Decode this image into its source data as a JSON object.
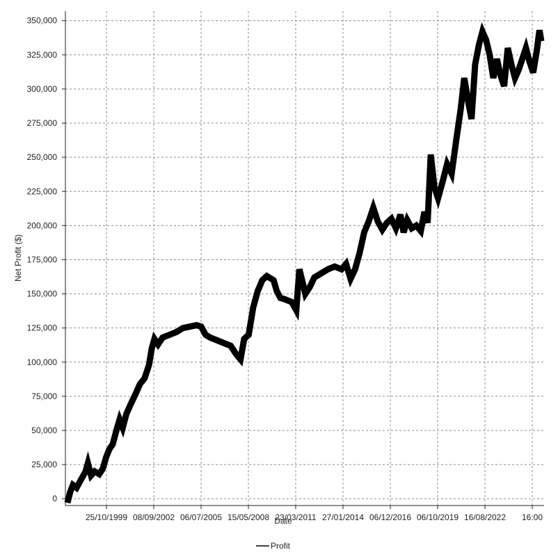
{
  "chart_data": {
    "type": "line",
    "xlabel": "Date",
    "ylabel": "Net Profit ($)",
    "ylim": [
      -5000,
      357000
    ],
    "y_ticks": [
      0,
      25000,
      50000,
      75000,
      100000,
      125000,
      150000,
      175000,
      200000,
      225000,
      250000,
      275000,
      300000,
      325000,
      350000
    ],
    "y_tick_labels": [
      "0",
      "25,000",
      "50,000",
      "75,000",
      "100,000",
      "125,000",
      "150,000",
      "175,000",
      "200,000",
      "225,000",
      "250,000",
      "275,000",
      "300,000",
      "325,000",
      "350,000"
    ],
    "x_ticks": [
      "25/10/1999",
      "08/09/2002",
      "06/07/2005",
      "15/05/2008",
      "23/03/2011",
      "27/01/2014",
      "06/12/2016",
      "06/10/2019",
      "16/08/2022",
      "16:00"
    ],
    "x_tick_labels": [
      "25/10/1999",
      "08/09/2002",
      "06/07/2005",
      "15/05/2008",
      "23/03/2011",
      "27/01/2014",
      "06/12/2016",
      "06/10/2019",
      "16/08/2022",
      "16:00"
    ],
    "grid": true,
    "legend": {
      "position": "bottom-center",
      "entries": [
        "Profit"
      ]
    },
    "series": [
      {
        "name": "Profit",
        "color": "#000000",
        "points": [
          [
            0.0,
            -3000
          ],
          [
            0.06,
            5000
          ],
          [
            0.12,
            10000
          ],
          [
            0.2,
            8000
          ],
          [
            0.3,
            14000
          ],
          [
            0.4,
            20000
          ],
          [
            0.45,
            26000
          ],
          [
            0.52,
            17000
          ],
          [
            0.6,
            20000
          ],
          [
            0.7,
            18000
          ],
          [
            0.78,
            22000
          ],
          [
            0.85,
            30000
          ],
          [
            0.92,
            36000
          ],
          [
            1.0,
            40000
          ],
          [
            1.08,
            50000
          ],
          [
            1.15,
            58000
          ],
          [
            1.22,
            52000
          ],
          [
            1.3,
            62000
          ],
          [
            1.38,
            68000
          ],
          [
            1.45,
            73000
          ],
          [
            1.52,
            78000
          ],
          [
            1.6,
            84000
          ],
          [
            1.7,
            88000
          ],
          [
            1.8,
            98000
          ],
          [
            1.86,
            110000
          ],
          [
            1.92,
            117000
          ],
          [
            2.0,
            113000
          ],
          [
            2.1,
            118000
          ],
          [
            2.25,
            120000
          ],
          [
            2.4,
            122000
          ],
          [
            2.55,
            125000
          ],
          [
            2.7,
            126000
          ],
          [
            2.85,
            127000
          ],
          [
            2.95,
            126000
          ],
          [
            3.05,
            120000
          ],
          [
            3.15,
            118000
          ],
          [
            3.3,
            116000
          ],
          [
            3.45,
            114000
          ],
          [
            3.6,
            112000
          ],
          [
            3.72,
            106000
          ],
          [
            3.82,
            102000
          ],
          [
            3.9,
            117000
          ],
          [
            4.0,
            120000
          ],
          [
            4.1,
            140000
          ],
          [
            4.2,
            152000
          ],
          [
            4.3,
            160000
          ],
          [
            4.4,
            163000
          ],
          [
            4.55,
            160000
          ],
          [
            4.62,
            152000
          ],
          [
            4.7,
            147000
          ],
          [
            4.8,
            146000
          ],
          [
            4.95,
            144000
          ],
          [
            5.05,
            138000
          ],
          [
            5.12,
            168000
          ],
          [
            5.18,
            160000
          ],
          [
            5.25,
            150000
          ],
          [
            5.35,
            155000
          ],
          [
            5.45,
            162000
          ],
          [
            5.6,
            165000
          ],
          [
            5.75,
            168000
          ],
          [
            5.9,
            170000
          ],
          [
            6.05,
            168000
          ],
          [
            6.15,
            172000
          ],
          [
            6.25,
            161000
          ],
          [
            6.35,
            168000
          ],
          [
            6.45,
            180000
          ],
          [
            6.55,
            195000
          ],
          [
            6.65,
            203000
          ],
          [
            6.75,
            213000
          ],
          [
            6.85,
            203000
          ],
          [
            6.95,
            197000
          ],
          [
            7.05,
            202000
          ],
          [
            7.15,
            205000
          ],
          [
            7.25,
            198000
          ],
          [
            7.35,
            208000
          ],
          [
            7.42,
            195000
          ],
          [
            7.5,
            204000
          ],
          [
            7.6,
            198000
          ],
          [
            7.7,
            200000
          ],
          [
            7.8,
            196000
          ],
          [
            7.88,
            210000
          ],
          [
            7.95,
            202000
          ],
          [
            8.02,
            252000
          ],
          [
            8.1,
            228000
          ],
          [
            8.18,
            220000
          ],
          [
            8.28,
            232000
          ],
          [
            8.38,
            245000
          ],
          [
            8.48,
            238000
          ],
          [
            8.58,
            262000
          ],
          [
            8.68,
            285000
          ],
          [
            8.76,
            308000
          ],
          [
            8.84,
            292000
          ],
          [
            8.92,
            278000
          ],
          [
            9.0,
            318000
          ],
          [
            9.08,
            332000
          ],
          [
            9.16,
            342000
          ],
          [
            9.24,
            336000
          ],
          [
            9.32,
            325000
          ],
          [
            9.4,
            308000
          ],
          [
            9.48,
            322000
          ],
          [
            9.56,
            310000
          ],
          [
            9.64,
            302000
          ],
          [
            9.72,
            330000
          ],
          [
            9.8,
            318000
          ],
          [
            9.88,
            308000
          ],
          [
            9.96,
            314000
          ],
          [
            10.04,
            322000
          ],
          [
            10.12,
            330000
          ],
          [
            10.2,
            320000
          ],
          [
            10.28,
            312000
          ],
          [
            10.36,
            328000
          ],
          [
            10.42,
            343000
          ],
          [
            10.46,
            335000
          ]
        ]
      }
    ]
  }
}
